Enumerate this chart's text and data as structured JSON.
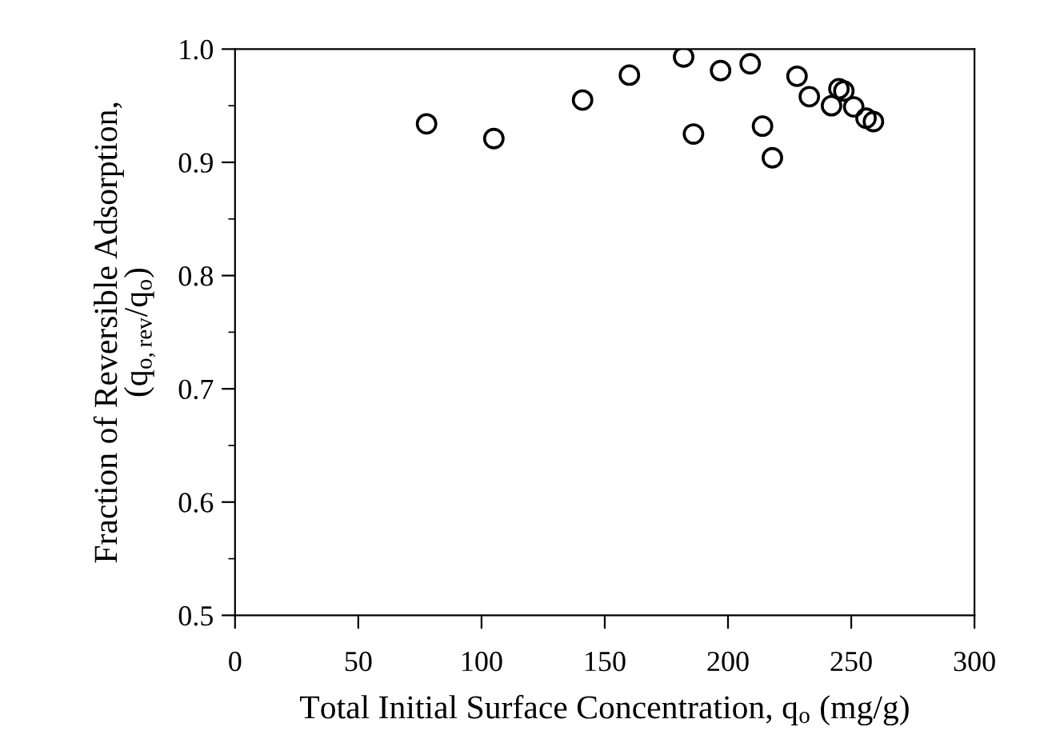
{
  "chart_data": {
    "type": "scatter",
    "xlabel": "Total Initial Surface Concentration, q$_{o}$ (mg/g)",
    "ylabel": "Fraction of Reversible Adsorption,\n(q$_{o,rev}$/q$_{o}$)",
    "x": [
      77.7,
      105,
      141,
      160,
      182,
      186,
      197,
      209,
      214,
      218,
      228,
      233,
      242,
      247,
      245,
      251,
      256,
      259
    ],
    "values": [
      0.934,
      0.921,
      0.955,
      0.977,
      0.993,
      0.925,
      0.981,
      0.987,
      0.932,
      0.904,
      0.976,
      0.958,
      0.95,
      0.963,
      0.965,
      0.949,
      0.939,
      0.936
    ],
    "color": "#000000",
    "marker": "circle",
    "xlim": [
      0,
      300
    ],
    "ylim": [
      0.5,
      1.0
    ],
    "xticks": [
      0,
      50,
      100,
      150,
      200,
      250,
      300
    ],
    "yticks": [
      0.5,
      0.6,
      0.7,
      0.8,
      0.9,
      {
        "value": 1.0,
        "label": "1.0"
      }
    ],
    "grid": false
  }
}
